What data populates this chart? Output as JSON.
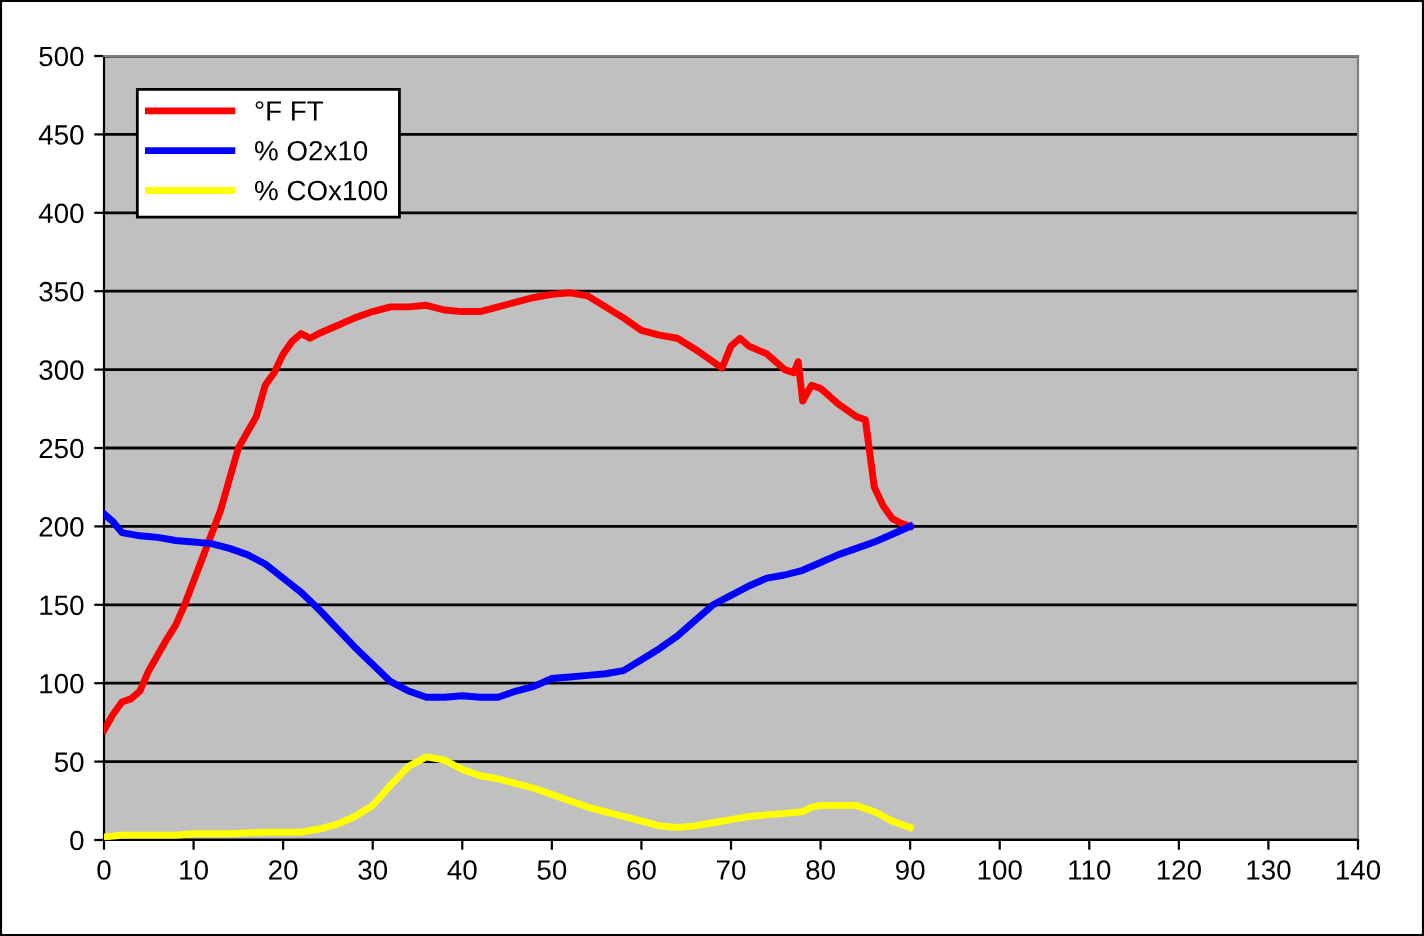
{
  "chart_data": {
    "type": "line",
    "xlim": [
      0,
      140
    ],
    "xticks": [
      0,
      10,
      20,
      30,
      40,
      50,
      60,
      70,
      80,
      90,
      100,
      110,
      120,
      130,
      140
    ],
    "ylim": [
      0,
      500
    ],
    "yticks": [
      0,
      50,
      100,
      150,
      200,
      250,
      300,
      350,
      400,
      450,
      500
    ],
    "grid": "y",
    "legend": "top left",
    "marker": "none",
    "line_style": "solid",
    "series": [
      {
        "name": "°F FT",
        "color": "#ff0000",
        "x": [
          0,
          1,
          2,
          3,
          4,
          5,
          6,
          7,
          8,
          9,
          10,
          11,
          12,
          13,
          14,
          15,
          16,
          17,
          18,
          19,
          20,
          21,
          22,
          23,
          24,
          26,
          28,
          30,
          32,
          34,
          36,
          38,
          40,
          42,
          44,
          46,
          48,
          50,
          52,
          54,
          56,
          58,
          60,
          62,
          64,
          66,
          68,
          69,
          70,
          71,
          72,
          74,
          76,
          77,
          77.5,
          78,
          79,
          80,
          82,
          84,
          85,
          86,
          87,
          88,
          89,
          90
        ],
        "values": [
          70,
          80,
          88,
          90,
          95,
          108,
          118,
          128,
          137,
          150,
          165,
          180,
          195,
          210,
          230,
          250,
          260,
          270,
          290,
          298,
          310,
          318,
          323,
          320,
          323,
          328,
          333,
          337,
          340,
          340,
          341,
          338,
          337,
          337,
          340,
          343,
          346,
          348,
          349,
          347,
          340,
          333,
          325,
          322,
          320,
          313,
          305,
          301,
          315,
          320,
          315,
          310,
          300,
          298,
          305,
          280,
          290,
          288,
          278,
          270,
          268,
          225,
          213,
          205,
          202,
          200
        ]
      },
      {
        "name": "% O2x10",
        "color": "#0000ff",
        "x": [
          0,
          1,
          2,
          4,
          6,
          8,
          10,
          12,
          14,
          16,
          18,
          20,
          22,
          24,
          26,
          28,
          30,
          32,
          34,
          36,
          38,
          40,
          42,
          44,
          46,
          48,
          50,
          52,
          54,
          56,
          58,
          60,
          62,
          64,
          66,
          68,
          70,
          72,
          74,
          76,
          78,
          80,
          82,
          84,
          86,
          88,
          90
        ],
        "values": [
          208,
          203,
          196,
          194,
          193,
          191,
          190,
          189,
          186,
          182,
          176,
          167,
          158,
          147,
          135,
          123,
          112,
          101,
          95,
          91,
          91,
          92,
          91,
          91,
          95,
          98,
          103,
          104,
          105,
          106,
          108,
          115,
          122,
          130,
          140,
          150,
          156,
          162,
          167,
          169,
          172,
          177,
          182,
          186,
          190,
          195,
          200
        ]
      },
      {
        "name": "% COx100",
        "color": "#ffff00",
        "x": [
          0,
          2,
          4,
          6,
          8,
          10,
          14,
          18,
          20,
          22,
          24,
          26,
          28,
          30,
          32,
          34,
          36,
          38,
          40,
          42,
          44,
          46,
          48,
          50,
          52,
          54,
          56,
          58,
          60,
          62,
          64,
          66,
          68,
          70,
          72,
          74,
          76,
          78,
          79,
          80,
          84,
          86,
          88,
          90
        ],
        "values": [
          2,
          3,
          3,
          3,
          3,
          4,
          4,
          5,
          5,
          5,
          7,
          10,
          15,
          22,
          35,
          47,
          53,
          51,
          45,
          41,
          39,
          36,
          33,
          29,
          25,
          21,
          18,
          15,
          12,
          9,
          8,
          9,
          11,
          13,
          15,
          16,
          17,
          18,
          21,
          22,
          22,
          18,
          12,
          8
        ]
      }
    ]
  }
}
